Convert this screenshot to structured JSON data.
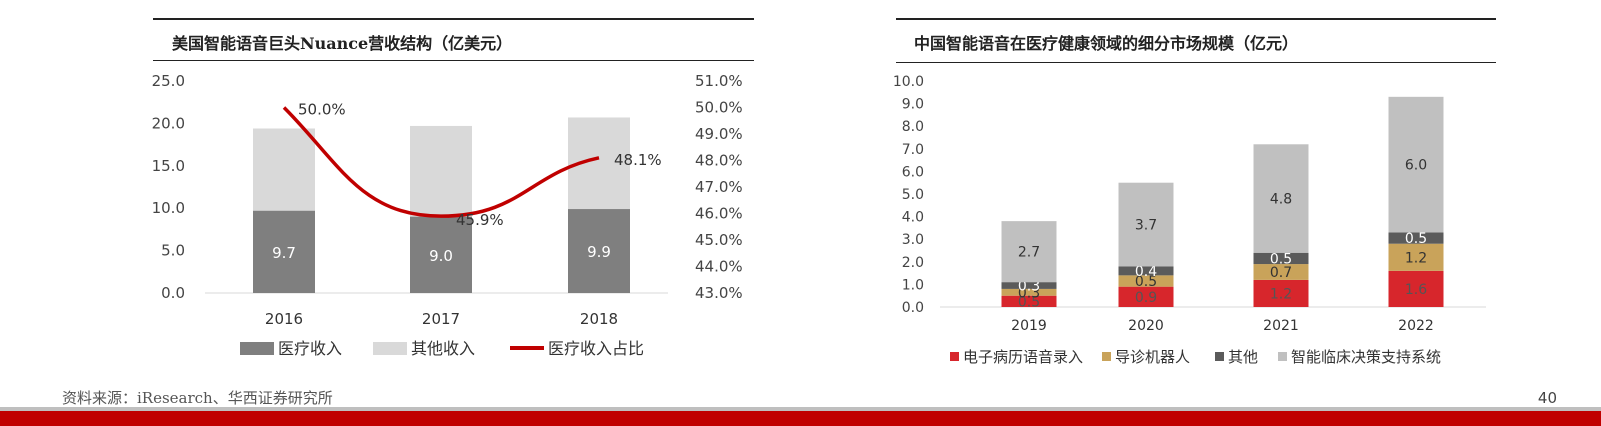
{
  "colors": {
    "medical_bar": "#7f7f7f",
    "other_bar": "#d9d9d9",
    "ratio_line": "#c00000",
    "emr": "#d7262c",
    "guide_robot": "#c9a35a",
    "other_seg": "#5b5b5b",
    "decision": "#c0c0c0",
    "footer_red": "#c00000",
    "footer_gray": "#bfbfbf"
  },
  "footer": {
    "source": "资料来源：iResearch、华西证券研究所",
    "page_number": "40"
  },
  "chart_data": [
    {
      "type": "bar",
      "title": "美国智能语音巨头Nuance营收结构（亿美元）",
      "categories": [
        "2016",
        "2017",
        "2018"
      ],
      "stacked": true,
      "y_left": {
        "ticks": [
          "0.0",
          "5.0",
          "10.0",
          "15.0",
          "20.0",
          "25.0"
        ],
        "ylim": [
          0,
          25
        ]
      },
      "y_right": {
        "ticks": [
          "43.0%",
          "44.0%",
          "45.0%",
          "46.0%",
          "47.0%",
          "48.0%",
          "49.0%",
          "50.0%",
          "51.0%"
        ],
        "ylim": [
          43,
          51
        ]
      },
      "series": [
        {
          "name": "医疗收入",
          "values": [
            9.7,
            9.0,
            9.9
          ],
          "labels": [
            "9.7",
            "9.0",
            "9.9"
          ],
          "axis": "left"
        },
        {
          "name": "其他收入",
          "values": [
            9.7,
            10.7,
            10.8
          ],
          "axis": "left"
        },
        {
          "name": "医疗收入占比",
          "type": "line",
          "values": [
            50.0,
            45.9,
            48.1
          ],
          "labels": [
            "50.0%",
            "45.9%",
            "48.1%"
          ],
          "axis": "right"
        }
      ],
      "legend": [
        "医疗收入",
        "其他收入",
        "医疗收入占比"
      ],
      "legend_position": "bottom",
      "grid": false
    },
    {
      "type": "bar",
      "title": "中国智能语音在医疗健康领域的细分市场规模（亿元）",
      "categories": [
        "2019",
        "2020",
        "2021",
        "2022"
      ],
      "stacked": true,
      "y": {
        "ticks": [
          "0.0",
          "1.0",
          "2.0",
          "3.0",
          "4.0",
          "5.0",
          "6.0",
          "7.0",
          "8.0",
          "9.0",
          "10.0"
        ],
        "ylim": [
          0,
          10
        ]
      },
      "series": [
        {
          "name": "电子病历语音录入",
          "values": [
            0.5,
            0.9,
            1.2,
            1.6
          ],
          "labels": [
            "0.5",
            "0.9",
            "1.2",
            "1.6"
          ]
        },
        {
          "name": "导诊机器人",
          "values": [
            0.3,
            0.5,
            0.7,
            1.2
          ],
          "labels": [
            "0.3",
            "0.5",
            "0.7",
            "1.2"
          ]
        },
        {
          "name": "其他",
          "values": [
            0.3,
            0.4,
            0.5,
            0.5
          ],
          "labels": [
            "0.3",
            "0.4",
            "0.5",
            "0.5"
          ]
        },
        {
          "name": "智能临床决策支持系统",
          "values": [
            2.7,
            3.7,
            4.8,
            6.0
          ],
          "labels": [
            "2.7",
            "3.7",
            "4.8",
            "6.0"
          ]
        }
      ],
      "legend": [
        "电子病历语音录入",
        "导诊机器人",
        "其他",
        "智能临床决策支持系统"
      ],
      "legend_position": "bottom",
      "grid": false
    }
  ]
}
